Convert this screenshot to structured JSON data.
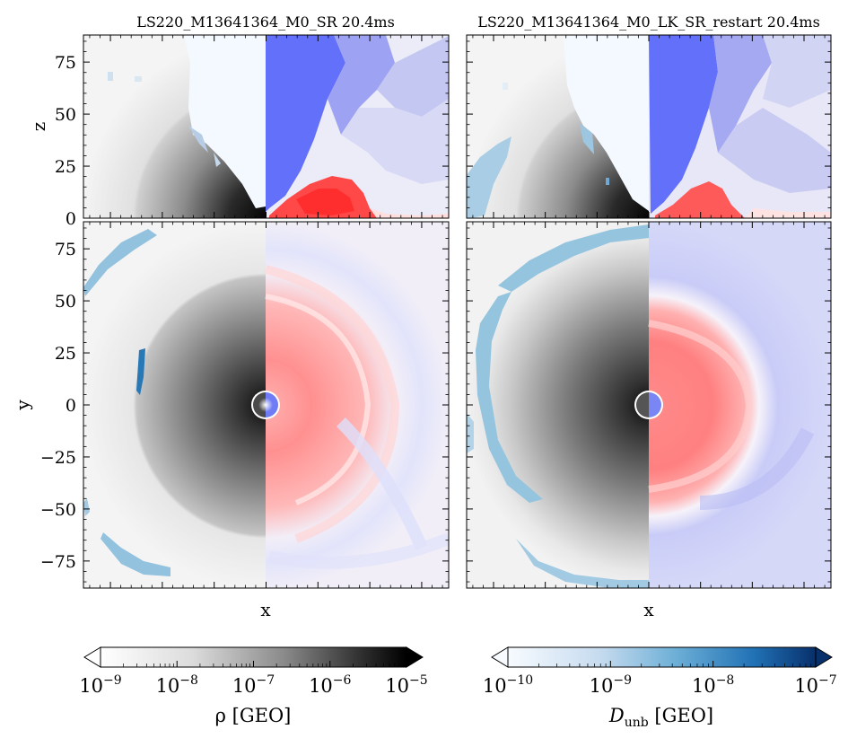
{
  "chart_data": [
    {
      "type": "heatmap",
      "panel": "top-left",
      "title": "LS220_M13641364_M0_SR 20.4ms",
      "xlabel": "",
      "ylabel": "z",
      "xlim": [
        -88,
        88
      ],
      "ylim": [
        0,
        88
      ],
      "yticks": [
        0,
        25,
        50,
        75
      ],
      "ytick_labels": [
        "0",
        "25",
        "50",
        "75"
      ],
      "left_half_field": "rho",
      "right_half_field": "diverging velocity-like field (red/blue)"
    },
    {
      "type": "heatmap",
      "panel": "top-right",
      "title": "LS220_M13641364_M0_LK_SR_restart 20.4ms",
      "xlabel": "",
      "ylabel": "",
      "xlim": [
        -88,
        88
      ],
      "ylim": [
        0,
        88
      ]
    },
    {
      "type": "heatmap",
      "panel": "bottom-left",
      "title": "",
      "xlabel": "x",
      "ylabel": "y",
      "xlim": [
        -88,
        88
      ],
      "ylim": [
        -88,
        88
      ],
      "yticks": [
        -75,
        -50,
        -25,
        0,
        25,
        50,
        75
      ],
      "ytick_labels": [
        "−75",
        "−50",
        "−25",
        "0",
        "25",
        "50",
        "75"
      ]
    },
    {
      "type": "heatmap",
      "panel": "bottom-right",
      "title": "",
      "xlabel": "x",
      "ylabel": "",
      "xlim": [
        -88,
        88
      ],
      "ylim": [
        -88,
        88
      ]
    }
  ],
  "colorbars": [
    {
      "name": "rho",
      "label": "ρ [GEO]",
      "colormap": "greys",
      "scale": "log",
      "range": [
        1e-09,
        1e-05
      ],
      "tick_bases": [
        "10",
        "10",
        "10",
        "10",
        "10"
      ],
      "tick_exponents": [
        "−9",
        "−8",
        "−7",
        "−6",
        "−5"
      ],
      "extend": "both"
    },
    {
      "name": "D_unb",
      "label_main": "D",
      "label_sub": "unb",
      "label_unit": " [GEO]",
      "colormap": "blues",
      "scale": "log",
      "range": [
        1e-10,
        1e-07
      ],
      "tick_bases": [
        "10",
        "10",
        "10",
        "10"
      ],
      "tick_exponents": [
        "−10",
        "−9",
        "−8",
        "−7"
      ],
      "extend": "both"
    }
  ],
  "colors": {
    "red": "#ff3a3a",
    "blue": "#5a66ff",
    "unbound_blue": "#8fc0dd"
  }
}
